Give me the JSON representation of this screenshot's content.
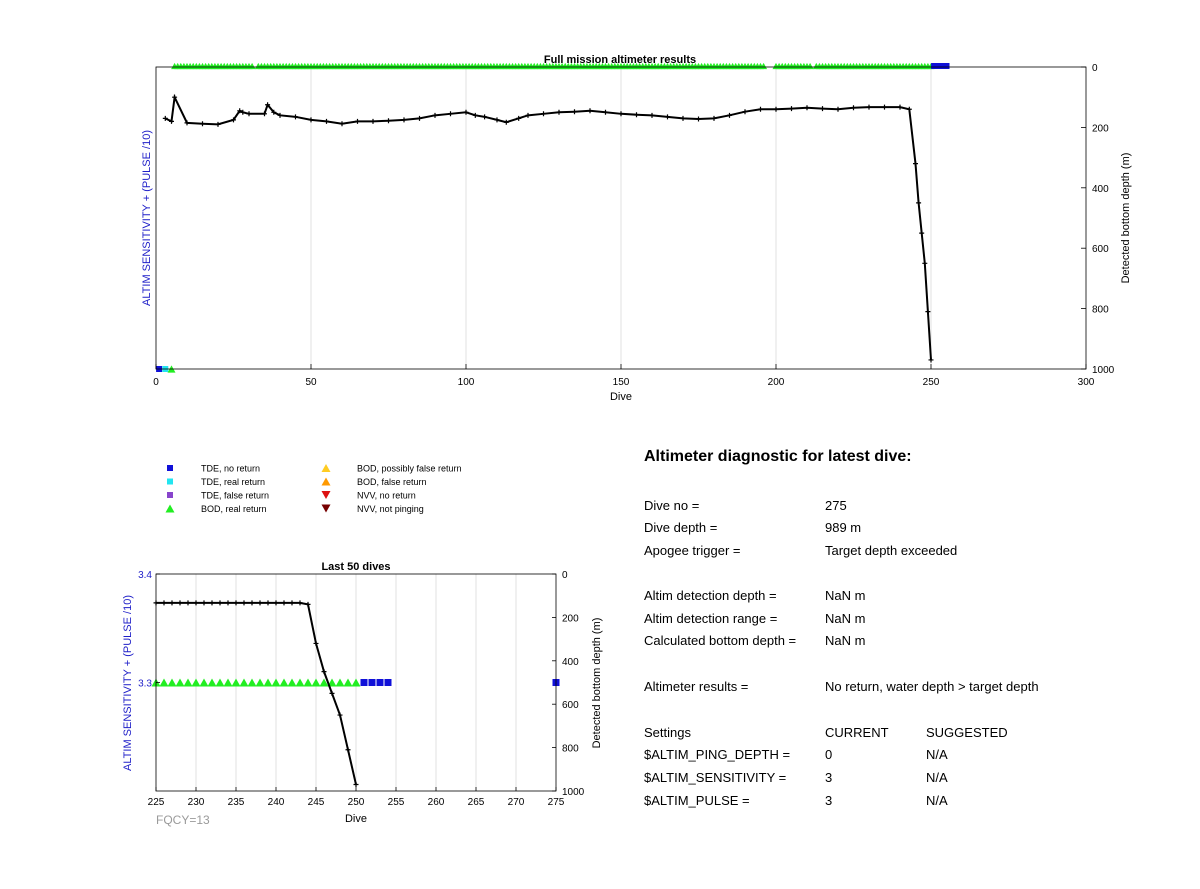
{
  "colors": {
    "tde_no_return": "#1010d8",
    "tde_real_return": "#22e5f0",
    "tde_false_return": "#8844cc",
    "bod_real_return": "#22ee22",
    "bod_possibly_false": "#ffcc22",
    "bod_false": "#ff9900",
    "nvv_no_return": "#dd1111",
    "nvv_not_pinging": "#770000",
    "depth_line": "#000000",
    "left_axis_label": "#1e1ec8"
  },
  "chart_data": [
    {
      "id": "full_mission",
      "type": "line",
      "title": "Full mission altimeter results",
      "xlabel": "Dive",
      "ylabel_left": "ALTIM SENSITIVITY + (PULSE /10)",
      "ylabel_right": "Detected bottom depth (m)",
      "xlim": [
        0,
        300
      ],
      "xticks": [
        "0",
        "50",
        "100",
        "150",
        "200",
        "250",
        "300"
      ],
      "ylim_right": [
        0,
        1000
      ],
      "yticks_right": [
        "0",
        "200",
        "400",
        "600",
        "800",
        "1000"
      ],
      "grid": "x",
      "depth_series": {
        "x": [
          3,
          5,
          6,
          10,
          15,
          20,
          25,
          27,
          28,
          30,
          35,
          36,
          38,
          40,
          45,
          50,
          55,
          60,
          65,
          70,
          75,
          80,
          85,
          90,
          95,
          100,
          103,
          106,
          110,
          113,
          117,
          120,
          125,
          130,
          135,
          140,
          145,
          150,
          155,
          160,
          165,
          170,
          175,
          180,
          185,
          190,
          195,
          200,
          205,
          210,
          215,
          220,
          225,
          230,
          235,
          240,
          243,
          245,
          246,
          247,
          248,
          249,
          250
        ],
        "y": [
          170,
          180,
          100,
          185,
          188,
          190,
          175,
          145,
          150,
          155,
          155,
          125,
          150,
          160,
          165,
          175,
          180,
          188,
          180,
          180,
          178,
          175,
          170,
          160,
          155,
          150,
          160,
          165,
          175,
          183,
          170,
          160,
          155,
          150,
          148,
          145,
          150,
          155,
          158,
          160,
          165,
          170,
          172,
          170,
          160,
          148,
          140,
          140,
          138,
          135,
          138,
          140,
          135,
          133,
          133,
          133,
          140,
          320,
          450,
          550,
          650,
          810,
          970
        ]
      },
      "top_marker_series": [
        {
          "type": "bod_real_return",
          "ranges": [
            [
              6,
              31
            ],
            [
              33,
              41
            ],
            [
              42,
              105
            ],
            [
              106,
              182
            ],
            [
              183,
              196
            ],
            [
              200,
              211
            ],
            [
              213,
              250
            ]
          ]
        },
        {
          "type": "tde_no_return",
          "ranges": [
            [
              251,
              255
            ]
          ]
        }
      ],
      "bottom_markers": [
        {
          "type": "tde_no_return",
          "x": 1
        },
        {
          "type": "tde_real_return",
          "x": 3
        },
        {
          "type": "bod_real_return",
          "x": 5
        }
      ]
    },
    {
      "id": "last_50",
      "type": "line",
      "title": "Last 50 dives",
      "xlabel": "Dive",
      "ylabel_left": "ALTIM SENSITIVITY + (PULSE /10)",
      "ylabel_right": "Detected bottom depth (m)",
      "xlim": [
        225,
        275
      ],
      "xticks": [
        "225",
        "230",
        "235",
        "240",
        "245",
        "250",
        "255",
        "260",
        "265",
        "270",
        "275"
      ],
      "ylim_left": [
        3.2,
        3.4
      ],
      "yticks_left": [
        "3.3",
        "3.4"
      ],
      "ylim_right": [
        0,
        1000
      ],
      "yticks_right": [
        "0",
        "200",
        "400",
        "600",
        "800",
        "1000"
      ],
      "grid": "x",
      "depth_series": {
        "x": [
          225,
          226,
          227,
          228,
          229,
          230,
          231,
          232,
          233,
          234,
          235,
          236,
          237,
          238,
          239,
          240,
          241,
          242,
          243,
          244,
          245,
          246,
          247,
          248,
          249,
          250
        ],
        "y": [
          133,
          133,
          133,
          133,
          133,
          133,
          133,
          133,
          133,
          133,
          133,
          133,
          133,
          133,
          133,
          133,
          133,
          133,
          133,
          140,
          320,
          450,
          550,
          650,
          810,
          970
        ]
      },
      "sensitivity_markers": [
        {
          "type": "bod_real_return",
          "x_from": 225,
          "x_to": 250,
          "y": 3.3
        },
        {
          "type": "tde_no_return",
          "x_values": [
            251,
            252,
            253,
            254,
            275
          ],
          "y": 3.3
        }
      ]
    }
  ],
  "legend": {
    "items": [
      {
        "label": "TDE, no return",
        "color_key": "tde_no_return",
        "marker": "square"
      },
      {
        "label": "TDE, real return",
        "color_key": "tde_real_return",
        "marker": "square"
      },
      {
        "label": "TDE, false return",
        "color_key": "tde_false_return",
        "marker": "square"
      },
      {
        "label": "BOD, real return",
        "color_key": "bod_real_return",
        "marker": "triangle-up"
      },
      {
        "label": "BOD, possibly false return",
        "color_key": "bod_possibly_false",
        "marker": "triangle-up"
      },
      {
        "label": "BOD, false return",
        "color_key": "bod_false",
        "marker": "triangle-up"
      },
      {
        "label": "NVV, no return",
        "color_key": "nvv_no_return",
        "marker": "triangle-down"
      },
      {
        "label": "NVV, not pinging",
        "color_key": "nvv_not_pinging",
        "marker": "triangle-down"
      }
    ]
  },
  "diagnostic": {
    "title": "Altimeter diagnostic for latest dive:",
    "dive_no_label": "Dive no =",
    "dive_no_value": "275",
    "dive_depth_label": "Dive depth =",
    "dive_depth_value": "989 m",
    "apogee_label": "Apogee trigger =",
    "apogee_value": "Target depth exceeded",
    "detection_depth_label": "Altim detection depth =",
    "detection_depth_value": "NaN m",
    "detection_range_label": "Altim detection range =",
    "detection_range_value": "NaN m",
    "bottom_depth_label": "Calculated bottom depth =",
    "bottom_depth_value": "NaN m",
    "results_label": "Altimeter results =",
    "results_value": "No return, water depth > target depth",
    "settings_header": "Settings",
    "current_header": "CURRENT",
    "suggested_header": "SUGGESTED",
    "settings": [
      {
        "name": "$ALTIM_PING_DEPTH =",
        "current": "0",
        "suggested": "N/A"
      },
      {
        "name": "$ALTIM_SENSITIVITY =",
        "current": "3",
        "suggested": "N/A"
      },
      {
        "name": "$ALTIM_PULSE =",
        "current": "3",
        "suggested": "N/A"
      }
    ]
  },
  "footer": {
    "fqcy": "FQCY=13"
  }
}
